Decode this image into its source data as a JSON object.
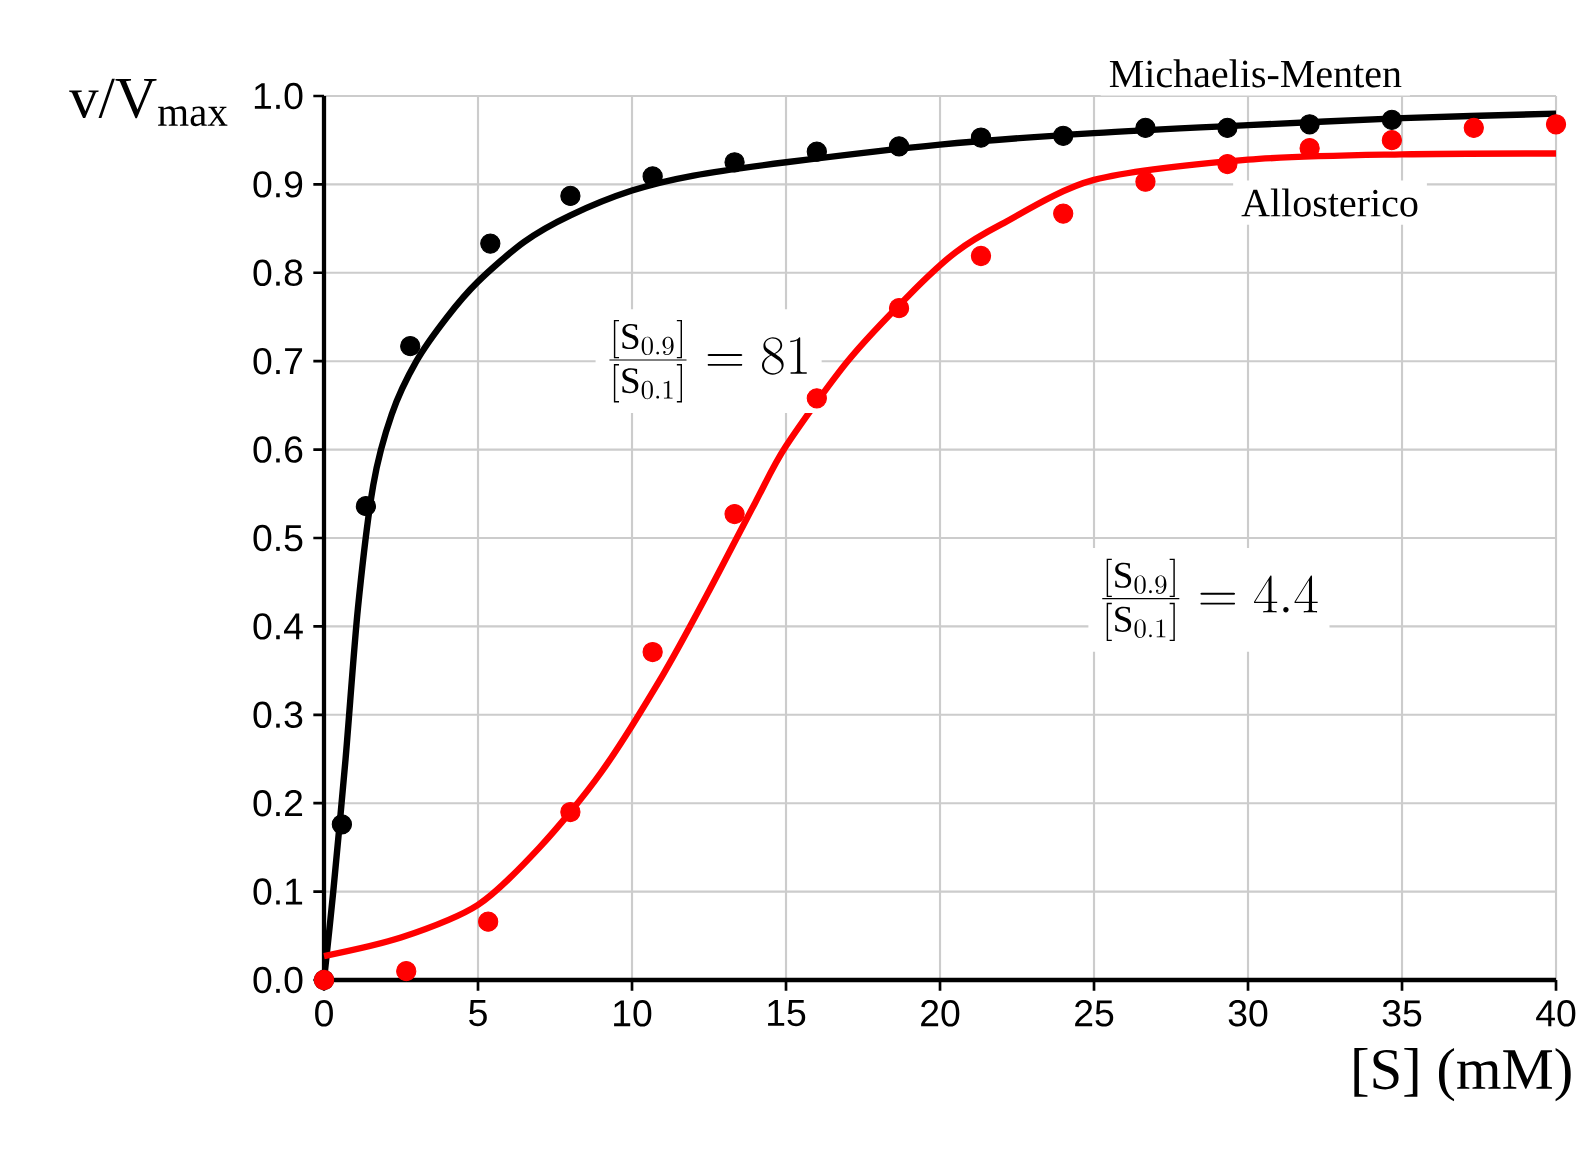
{
  "chart_data": {
    "type": "scatter",
    "xlabel": "[S] (mM)",
    "ylabel": "v/V$_{max}$",
    "xlim": [
      0,
      40
    ],
    "ylim": [
      0,
      1
    ],
    "xticks": [
      0,
      5,
      10,
      15,
      20,
      25,
      30,
      35,
      40
    ],
    "yticks": [
      {
        "value": 0,
        "label": "0.0"
      },
      {
        "value": 0.1,
        "label": "0.1"
      },
      {
        "value": 0.2,
        "label": "0.2"
      },
      {
        "value": 0.3,
        "label": "0.3"
      },
      {
        "value": 0.4,
        "label": "0.4"
      },
      {
        "value": 0.5,
        "label": "0.5"
      },
      {
        "value": 0.6,
        "label": "0.6"
      },
      {
        "value": 0.7,
        "label": "0.7"
      },
      {
        "value": 0.8,
        "label": "0.8"
      },
      {
        "value": 0.9,
        "label": "0.9"
      },
      {
        "value": 1,
        "label": "1.0"
      }
    ],
    "grid": true,
    "series": [
      {
        "type": "line",
        "name": "Michaelis-Menten",
        "color": "#000000",
        "marker": "none",
        "x": [
          0,
          0.3,
          0.7,
          1.1,
          1.6,
          2.2,
          3,
          4,
          5,
          6.5,
          8,
          10,
          12,
          15,
          20,
          25,
          30,
          35,
          40
        ],
        "values": [
          0,
          0.1,
          0.25,
          0.42,
          0.56,
          0.64,
          0.7,
          0.75,
          0.79,
          0.835,
          0.865,
          0.893,
          0.91,
          0.925,
          0.945,
          0.958,
          0.967,
          0.975,
          0.98
        ]
      },
      {
        "color": "#000000",
        "marker": "circle",
        "x": [
          0,
          0.58,
          1.36,
          2.8,
          5.4,
          8,
          10.67,
          13.33,
          16,
          18.67,
          21.33,
          24,
          26.67,
          29.33,
          32,
          34.67
        ],
        "values": [
          0,
          0.176,
          0.536,
          0.717,
          0.833,
          0.887,
          0.909,
          0.925,
          0.937,
          0.943,
          0.953,
          0.955,
          0.964,
          0.964,
          0.968,
          0.973
        ]
      },
      {
        "type": "line",
        "name": "Allosterico",
        "color": "#ff0000",
        "marker": "none",
        "x": [
          0,
          2.5,
          5,
          7,
          9,
          11,
          12.5,
          14,
          15,
          17,
          19,
          20.5,
          22,
          25,
          30,
          35,
          40
        ],
        "values": [
          0.027,
          0.048,
          0.085,
          0.15,
          0.235,
          0.345,
          0.44,
          0.54,
          0.604,
          0.7,
          0.775,
          0.823,
          0.855,
          0.905,
          0.928,
          0.934,
          0.935
        ]
      },
      {
        "color": "#ff0000",
        "marker": "circle",
        "x": [
          0,
          2.67,
          5.33,
          8,
          10.67,
          13.33,
          16,
          18.67,
          21.33,
          24,
          26.67,
          29.33,
          32,
          34.67,
          37.33,
          40
        ],
        "values": [
          0,
          0.01,
          0.066,
          0.19,
          0.371,
          0.527,
          0.658,
          0.76,
          0.819,
          0.867,
          0.903,
          0.923,
          0.941,
          0.95,
          0.964,
          0.968
        ]
      }
    ],
    "annotations": [
      "\\frac{[\\mathrm{S}_{0.9}]}{[\\mathrm{S}_{0.1}]} = 81",
      "\\frac{[\\mathrm{S}_{0.9}]}{[\\mathrm{S}_{0.1}]} = 4.4"
    ]
  }
}
